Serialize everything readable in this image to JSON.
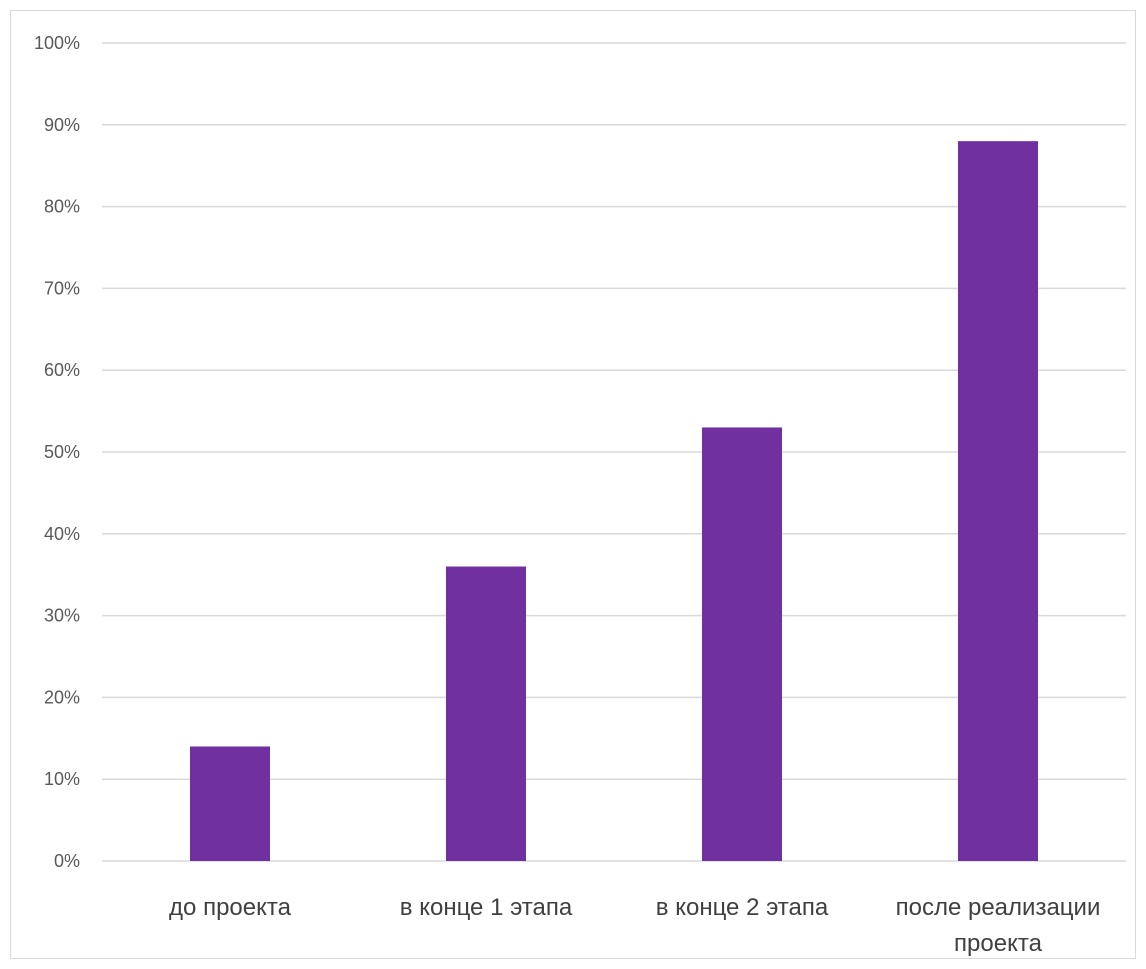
{
  "chart_data": {
    "type": "bar",
    "categories": [
      "до проекта",
      "в конце 1 этапа",
      "в конце 2 этапа",
      "после реализации проекта"
    ],
    "category_lines": [
      [
        "до проекта"
      ],
      [
        "в конце 1 этапа"
      ],
      [
        "в конце 2 этапа"
      ],
      [
        "после реализации",
        "проекта"
      ]
    ],
    "values": [
      14,
      36,
      53,
      88
    ],
    "ylim": [
      0,
      100
    ],
    "yticks": [
      0,
      10,
      20,
      30,
      40,
      50,
      60,
      70,
      80,
      90,
      100
    ],
    "ytick_suffix": "%",
    "title": "",
    "xlabel": "",
    "ylabel": "",
    "grid": true,
    "legend": "none",
    "bar_color": "#7030A0",
    "grid_color": "#d9d9d9"
  }
}
